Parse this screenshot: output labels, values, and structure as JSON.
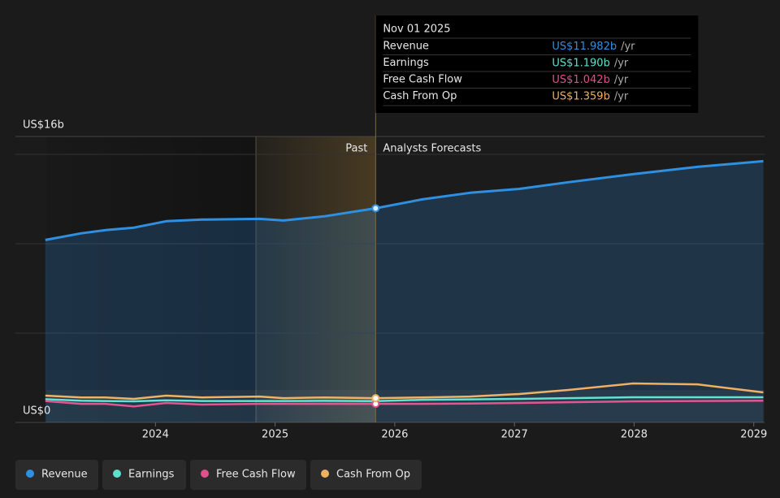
{
  "chart_data": {
    "type": "line",
    "x": [
      2023.08,
      2023.38,
      2023.58,
      2023.82,
      2024.09,
      2024.39,
      2024.87,
      2025.07,
      2025.41,
      2025.84,
      2026.23,
      2026.63,
      2027.04,
      2027.45,
      2027.99,
      2028.53,
      2029.08
    ],
    "series": [
      {
        "name": "Revenue",
        "color": "#2f8fe0",
        "values": [
          10.21,
          10.58,
          10.76,
          10.9,
          11.26,
          11.35,
          11.39,
          11.3,
          11.53,
          11.982,
          12.48,
          12.85,
          13.07,
          13.44,
          13.89,
          14.3,
          14.62
        ]
      },
      {
        "name": "Earnings",
        "color": "#5ee0cf",
        "values": [
          1.3,
          1.22,
          1.2,
          1.18,
          1.24,
          1.2,
          1.2,
          1.2,
          1.21,
          1.19,
          1.27,
          1.29,
          1.32,
          1.36,
          1.41,
          1.41,
          1.41
        ]
      },
      {
        "name": "Free Cash Flow",
        "color": "#e0508a",
        "values": [
          1.2,
          1.04,
          1.04,
          0.9,
          1.09,
          1.0,
          1.04,
          1.04,
          1.04,
          1.042,
          1.04,
          1.06,
          1.09,
          1.13,
          1.18,
          1.2,
          1.22
        ]
      },
      {
        "name": "Cash From Op",
        "color": "#f0b060",
        "values": [
          1.5,
          1.4,
          1.4,
          1.32,
          1.5,
          1.4,
          1.45,
          1.36,
          1.4,
          1.359,
          1.4,
          1.45,
          1.59,
          1.82,
          2.18,
          2.13,
          1.68
        ]
      }
    ],
    "xlim": [
      2022.83,
      2029.09
    ],
    "xticks": [
      2024,
      2025,
      2026,
      2027,
      2028,
      2029
    ],
    "ylim": [
      0,
      16
    ],
    "yticks": [
      {
        "value": 0,
        "label": "US$0"
      },
      {
        "value": 16,
        "label": "US$16b"
      }
    ],
    "ygrid": [
      5,
      10,
      15
    ],
    "highlight_start": 2024.84,
    "forecast_start": 2025.84,
    "past_label": "Past",
    "forecast_label": "Analysts Forecasts",
    "tooltip": {
      "date": "Nov 01 2025",
      "x": 2025.84,
      "rows": [
        {
          "label": "Revenue",
          "value": 11.982,
          "value_label": "US$11.982b",
          "unit": "/yr"
        },
        {
          "label": "Earnings",
          "value": 1.19,
          "value_label": "US$1.190b",
          "unit": "/yr"
        },
        {
          "label": "Free Cash Flow",
          "value": 1.042,
          "value_label": "US$1.042b",
          "unit": "/yr"
        },
        {
          "label": "Cash From Op",
          "value": 1.359,
          "value_label": "US$1.359b",
          "unit": "/yr"
        }
      ]
    }
  }
}
